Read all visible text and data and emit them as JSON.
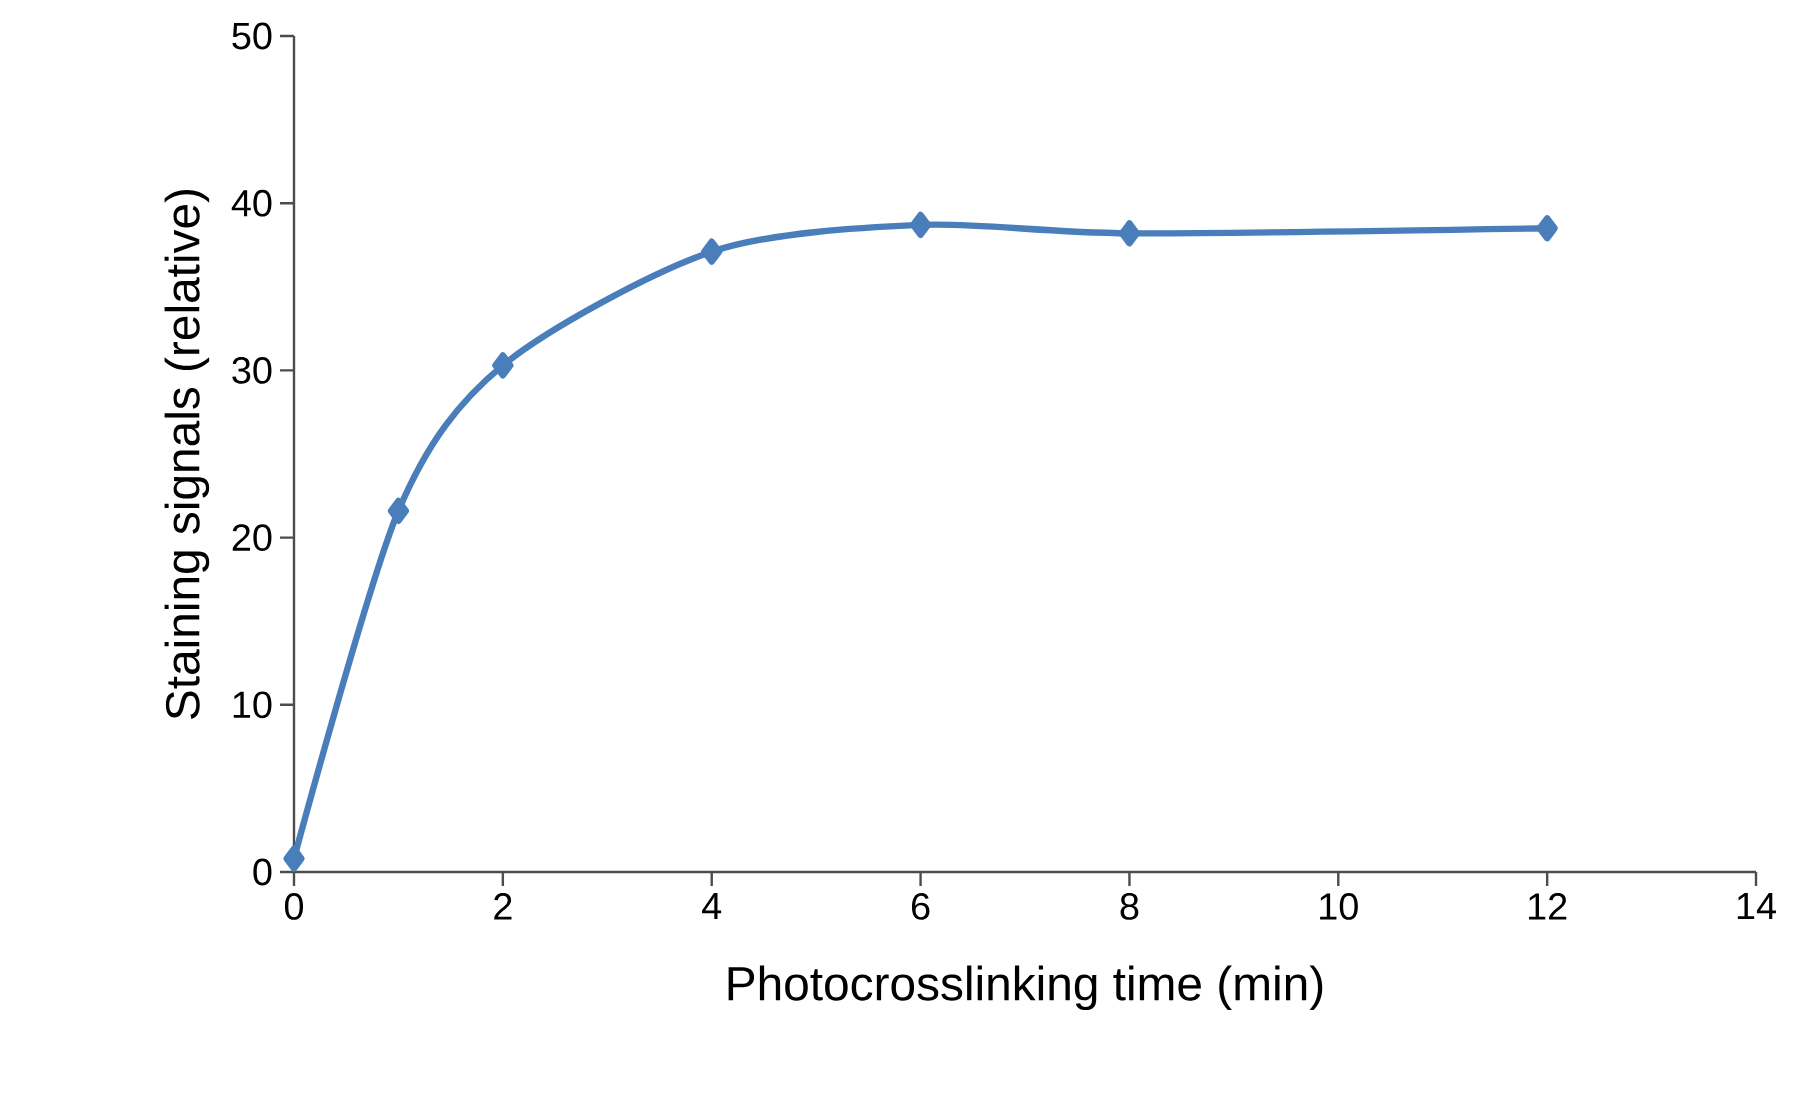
{
  "chart_data": {
    "type": "line",
    "xlabel": "Photocrosslinking time (min)",
    "ylabel": "Staining signals (relative)",
    "x": [
      0,
      1,
      2,
      4,
      6,
      8,
      12
    ],
    "series": [
      {
        "color": "#4a7ebb",
        "values": [
          0.8,
          21.6,
          30.3,
          37.1,
          38.7,
          38.2,
          38.5
        ]
      }
    ],
    "xlim": [
      0,
      14
    ],
    "ylim": [
      0,
      50
    ],
    "xticks": [
      0,
      2,
      4,
      6,
      8,
      10,
      12,
      14
    ],
    "yticks": [
      0,
      10,
      20,
      30,
      40,
      50
    ],
    "grid": false,
    "marker": "diamond",
    "line_style": "solid"
  }
}
